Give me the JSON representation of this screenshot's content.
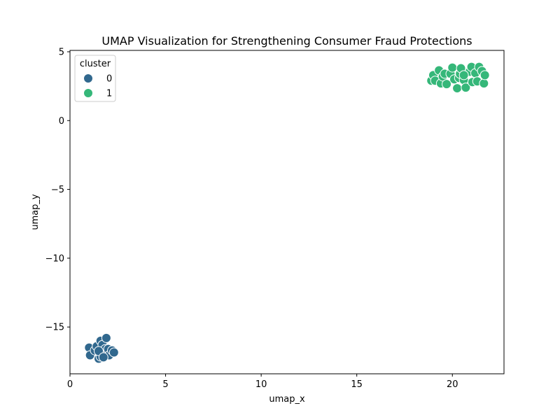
{
  "chart_data": {
    "type": "scatter",
    "title": "UMAP Visualization for Strengthening Consumer Fraud Protections",
    "xlabel": "umap_x",
    "ylabel": "umap_y",
    "xlim": [
      0,
      22.7
    ],
    "ylim": [
      -18.4,
      5.1
    ],
    "xticks": [
      0,
      5,
      10,
      15,
      20
    ],
    "yticks": [
      5,
      0,
      -5,
      -10,
      -15
    ],
    "xtick_labels": [
      "0",
      "5",
      "10",
      "15",
      "20"
    ],
    "ytick_labels": [
      "5",
      "0",
      "−5",
      "−10",
      "−15"
    ],
    "grid": false,
    "legend": {
      "title": "cluster",
      "placement": "top-left",
      "entries": [
        "0",
        "1"
      ]
    },
    "series": [
      {
        "name": "0",
        "color": "#31688e",
        "points": [
          [
            1.0,
            -16.5
          ],
          [
            1.05,
            -17.05
          ],
          [
            1.3,
            -16.7
          ],
          [
            1.4,
            -16.4
          ],
          [
            1.5,
            -17.3
          ],
          [
            1.6,
            -17.15
          ],
          [
            1.6,
            -16.0
          ],
          [
            1.7,
            -16.3
          ],
          [
            1.8,
            -16.9
          ],
          [
            1.85,
            -16.6
          ],
          [
            1.9,
            -15.8
          ],
          [
            1.95,
            -16.95
          ],
          [
            2.0,
            -16.6
          ],
          [
            2.05,
            -17.05
          ],
          [
            2.2,
            -16.7
          ],
          [
            2.3,
            -16.85
          ],
          [
            1.5,
            -16.75
          ],
          [
            1.75,
            -17.2
          ]
        ]
      },
      {
        "name": "1",
        "color": "#35b779",
        "points": [
          [
            18.9,
            2.9
          ],
          [
            19.0,
            3.3
          ],
          [
            19.1,
            2.9
          ],
          [
            19.3,
            3.65
          ],
          [
            19.4,
            2.7
          ],
          [
            19.5,
            3.2
          ],
          [
            19.6,
            3.4
          ],
          [
            19.7,
            2.65
          ],
          [
            19.9,
            3.4
          ],
          [
            20.0,
            3.85
          ],
          [
            20.1,
            3.0
          ],
          [
            20.25,
            2.35
          ],
          [
            20.35,
            3.1
          ],
          [
            20.4,
            3.4
          ],
          [
            20.45,
            3.8
          ],
          [
            20.6,
            2.95
          ],
          [
            20.7,
            2.4
          ],
          [
            20.9,
            3.55
          ],
          [
            21.0,
            3.9
          ],
          [
            21.05,
            2.8
          ],
          [
            21.2,
            3.45
          ],
          [
            21.3,
            2.85
          ],
          [
            21.4,
            3.9
          ],
          [
            21.55,
            3.6
          ],
          [
            21.65,
            2.7
          ],
          [
            21.7,
            3.3
          ],
          [
            20.6,
            3.3
          ]
        ]
      }
    ]
  }
}
